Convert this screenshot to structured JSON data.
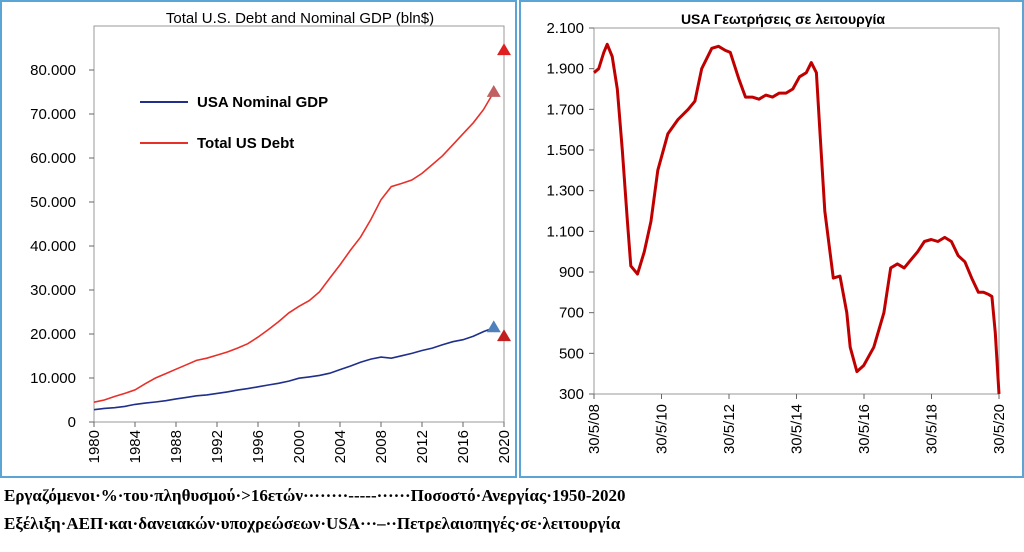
{
  "chart_data": [
    {
      "type": "line",
      "title": "Total U.S. Debt and Nominal GDP (bln$)",
      "xlabel": "",
      "ylabel": "",
      "xlim": [
        1980,
        2020
      ],
      "ylim": [
        0,
        90000
      ],
      "x_ticks": [
        "1980",
        "1984",
        "1988",
        "1992",
        "1996",
        "2000",
        "2004",
        "2008",
        "2012",
        "2016",
        "2020"
      ],
      "y_ticks": [
        "0",
        "10.000",
        "20.000",
        "30.000",
        "40.000",
        "50.000",
        "60.000",
        "70.000",
        "80.000"
      ],
      "legend_position": "upper-left",
      "series": [
        {
          "name": "USA Nominal GDP",
          "color": "#1f2f8a",
          "x": [
            1980,
            1981,
            1982,
            1983,
            1984,
            1985,
            1986,
            1987,
            1988,
            1989,
            1990,
            1991,
            1992,
            1993,
            1994,
            1995,
            1996,
            1997,
            1998,
            1999,
            2000,
            2001,
            2002,
            2003,
            2004,
            2005,
            2006,
            2007,
            2008,
            2009,
            2010,
            2011,
            2012,
            2013,
            2014,
            2015,
            2016,
            2017,
            2018,
            2019
          ],
          "values": [
            2800,
            3100,
            3250,
            3550,
            4000,
            4300,
            4550,
            4850,
            5250,
            5600,
            5950,
            6150,
            6500,
            6850,
            7250,
            7600,
            8000,
            8400,
            8800,
            9300,
            9950,
            10250,
            10600,
            11100,
            11900,
            12700,
            13600,
            14300,
            14750,
            14500,
            15050,
            15600,
            16250,
            16800,
            17550,
            18250,
            18700,
            19500,
            20550,
            21400
          ]
        },
        {
          "name": "Total US Debt",
          "color": "#e8302a",
          "x": [
            1980,
            1981,
            1982,
            1983,
            1984,
            1985,
            1986,
            1987,
            1988,
            1989,
            1990,
            1991,
            1992,
            1993,
            1994,
            1995,
            1996,
            1997,
            1998,
            1999,
            2000,
            2001,
            2002,
            2003,
            2004,
            2005,
            2006,
            2007,
            2008,
            2009,
            2010,
            2011,
            2012,
            2013,
            2014,
            2015,
            2016,
            2017,
            2018,
            2019
          ],
          "values": [
            4500,
            5000,
            5800,
            6500,
            7300,
            8700,
            10000,
            11000,
            12000,
            13000,
            14000,
            14500,
            15200,
            15900,
            16800,
            17800,
            19300,
            21000,
            22800,
            24800,
            26300,
            27600,
            29600,
            32700,
            35700,
            39000,
            42000,
            46000,
            50500,
            53500,
            54200,
            55000,
            56500,
            58500,
            60500,
            63000,
            65500,
            68000,
            71000,
            75000
          ]
        }
      ],
      "markers": [
        {
          "x": 2019,
          "value": 75000,
          "shape": "triangle",
          "color": "#c06060"
        },
        {
          "x": 2020,
          "value": 84500,
          "shape": "triangle",
          "color": "#e02020"
        },
        {
          "x": 2019,
          "value": 21500,
          "shape": "triangle",
          "color": "#4f81bd"
        },
        {
          "x": 2020,
          "value": 19500,
          "shape": "triangle",
          "color": "#c02020"
        }
      ]
    },
    {
      "type": "line",
      "title": "USA Γεωτρήσεις σε λειτουργία",
      "xlabel": "",
      "ylabel": "",
      "x_ticks": [
        "30/5/08",
        "30/5/10",
        "30/5/12",
        "30/5/14",
        "30/5/16",
        "30/5/18",
        "30/5/20"
      ],
      "y_ticks": [
        "300",
        "500",
        "700",
        "900",
        "1.100",
        "1.300",
        "1.500",
        "1.700",
        "1.900",
        "2.100"
      ],
      "ylim": [
        300,
        2100
      ],
      "xlim": [
        2008.41,
        2020.41
      ],
      "series": [
        {
          "color": "#c00000",
          "x": [
            2008.41,
            2008.55,
            2008.7,
            2008.8,
            2008.95,
            2009.1,
            2009.25,
            2009.4,
            2009.5,
            2009.7,
            2009.9,
            2010.1,
            2010.3,
            2010.6,
            2010.9,
            2011.2,
            2011.4,
            2011.6,
            2011.9,
            2012.1,
            2012.3,
            2012.45,
            2012.7,
            2012.9,
            2013.1,
            2013.3,
            2013.5,
            2013.7,
            2013.9,
            2014.1,
            2014.3,
            2014.5,
            2014.7,
            2014.85,
            2015.0,
            2015.1,
            2015.25,
            2015.5,
            2015.7,
            2015.9,
            2016.0,
            2016.2,
            2016.4,
            2016.7,
            2017.0,
            2017.2,
            2017.4,
            2017.6,
            2017.8,
            2018.0,
            2018.2,
            2018.4,
            2018.6,
            2018.8,
            2019.0,
            2019.2,
            2019.4,
            2019.6,
            2019.8,
            2019.95,
            2020.1,
            2020.2,
            2020.3,
            2020.41
          ],
          "values": [
            1880,
            1900,
            1980,
            2020,
            1960,
            1800,
            1500,
            1150,
            930,
            890,
            1000,
            1150,
            1400,
            1580,
            1650,
            1700,
            1740,
            1900,
            2000,
            2010,
            1990,
            1980,
            1850,
            1760,
            1760,
            1750,
            1770,
            1760,
            1780,
            1780,
            1800,
            1860,
            1880,
            1930,
            1880,
            1600,
            1200,
            870,
            880,
            700,
            530,
            410,
            440,
            530,
            700,
            920,
            940,
            920,
            960,
            1000,
            1050,
            1060,
            1050,
            1070,
            1050,
            980,
            950,
            870,
            800,
            800,
            790,
            780,
            600,
            300
          ]
        }
      ]
    }
  ],
  "captions": {
    "line1": "Εργαζόμενοι·%·του·πληθυσμού·>16ετών········-----······Ποσοστό·Ανεργίας·1950-2020",
    "line2": "Εξέλιξη·ΑΕΠ·και·δανειακών·υποχρεώσεων·USA···–··Πετρελαιοπηγές·σε·λειτουργία"
  }
}
